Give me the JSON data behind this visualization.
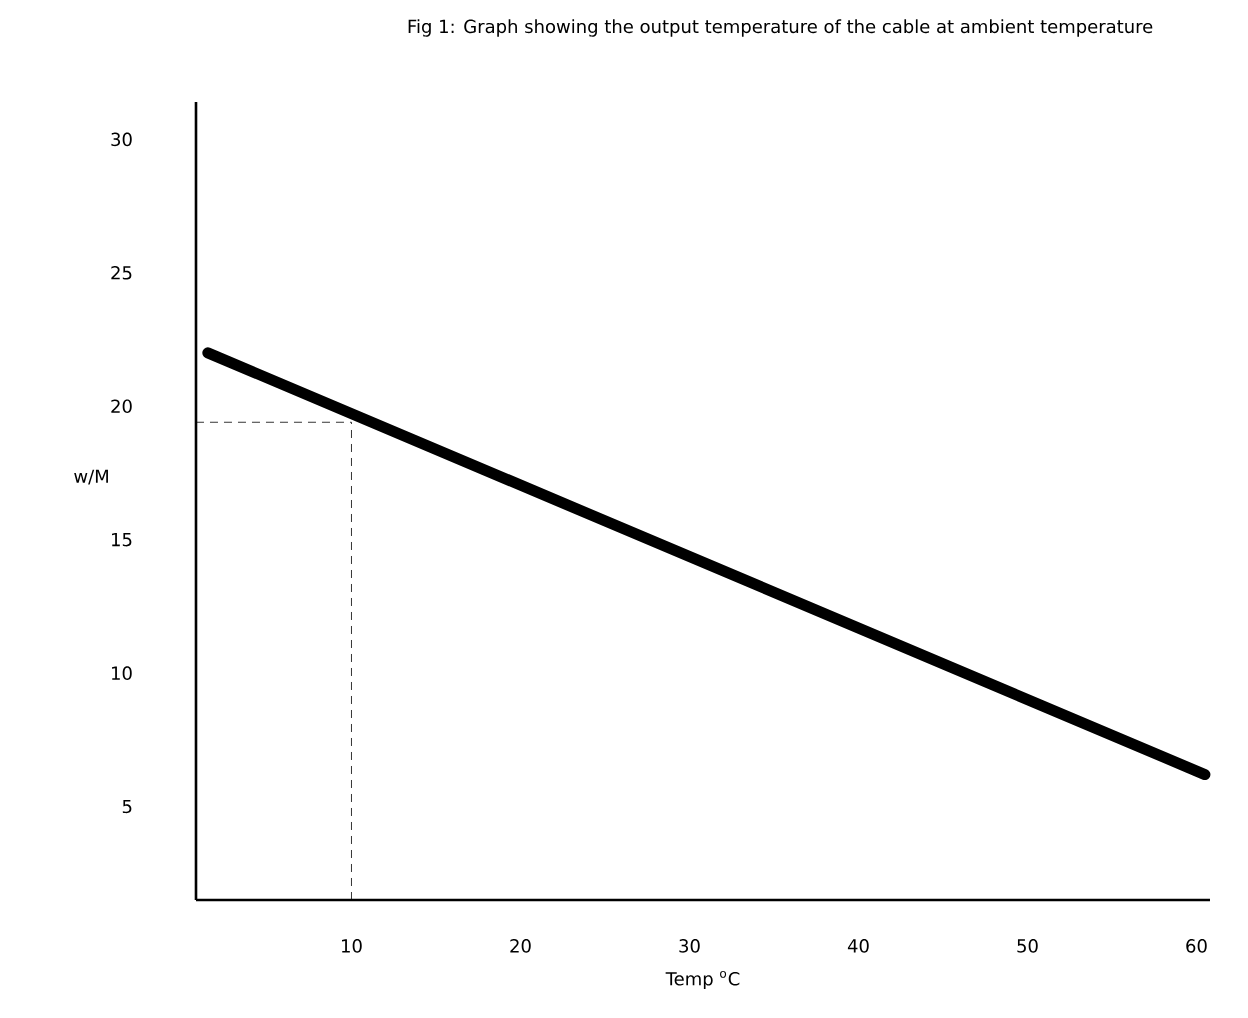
{
  "chart_data": {
    "type": "line",
    "title": "Fig 1: Graph showing the output temperature of the cable at ambient temperature",
    "xlabel": "Temp $^{o}$C",
    "ylabel": "w/M",
    "x": [
      1.5,
      60.5
    ],
    "series": [
      {
        "color": "#000000",
        "values": [
          22.0,
          6.2
        ]
      }
    ],
    "xlim": [
      0.8,
      60.8
    ],
    "xticks": [
      10,
      20,
      30,
      40,
      50,
      60
    ],
    "ylim": [
      1.5,
      31.4
    ],
    "yticks": [
      5,
      10,
      15,
      20,
      25,
      30
    ],
    "grid": false,
    "marker": "none",
    "line_style": "solid",
    "ref_lines": [
      {
        "axis": "x",
        "value": 10,
        "line_style": "dashed"
      },
      {
        "axis": "y",
        "value": 19.4,
        "line_style": "dashed"
      }
    ]
  }
}
